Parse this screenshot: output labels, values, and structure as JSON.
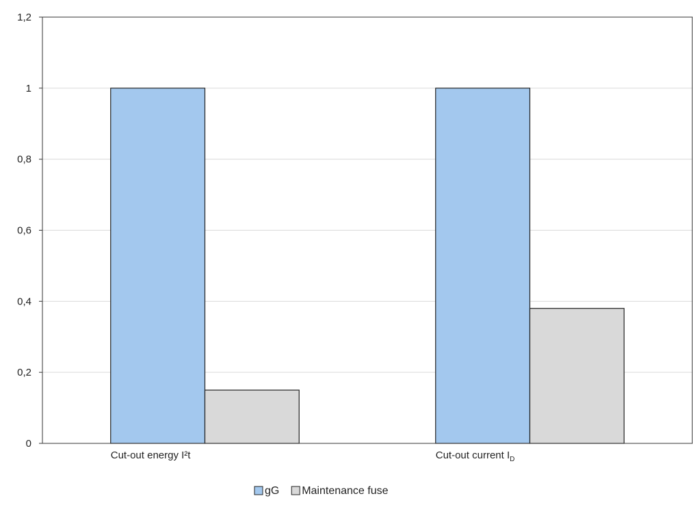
{
  "chart_data": {
    "type": "bar",
    "title": "",
    "xlabel": "",
    "ylabel": "",
    "categories": [
      {
        "text": "Cut-out energy I²t",
        "sub": ""
      },
      {
        "text": "Cut-out current I",
        "sub": "D"
      }
    ],
    "series": [
      {
        "name": "gG",
        "values": [
          1.0,
          1.0
        ],
        "color": "#a3c8ee"
      },
      {
        "name": "Maintenance fuse",
        "values": [
          0.15,
          0.38
        ],
        "color": "#d9d9d9"
      }
    ],
    "ylim": [
      0,
      1.2
    ],
    "yticks": [
      0,
      0.2,
      0.4,
      0.6,
      0.8,
      1,
      1.2
    ],
    "ytick_labels": [
      "0",
      "0,2",
      "0,4",
      "0,6",
      "0,8",
      "1",
      "1,2"
    ],
    "grid": true,
    "legend": "bottom-center",
    "border_color": "#333333",
    "grid_color": "#d9d9d9"
  }
}
